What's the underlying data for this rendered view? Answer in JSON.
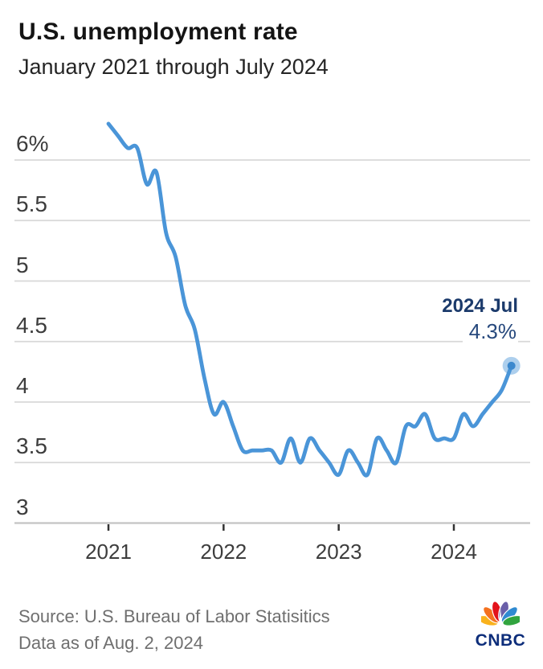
{
  "header": {
    "title": "U.S. unemployment rate",
    "subtitle": "January 2021 through July 2024"
  },
  "chart_data": {
    "type": "line",
    "title": "U.S. unemployment rate",
    "subtitle": "January 2021 through July 2024",
    "unit": "percent",
    "series_name": "U.S. unemployment rate",
    "months": [
      "2021-01",
      "2021-02",
      "2021-03",
      "2021-04",
      "2021-05",
      "2021-06",
      "2021-07",
      "2021-08",
      "2021-09",
      "2021-10",
      "2021-11",
      "2021-12",
      "2022-01",
      "2022-02",
      "2022-03",
      "2022-04",
      "2022-05",
      "2022-06",
      "2022-07",
      "2022-08",
      "2022-09",
      "2022-10",
      "2022-11",
      "2022-12",
      "2023-01",
      "2023-02",
      "2023-03",
      "2023-04",
      "2023-05",
      "2023-06",
      "2023-07",
      "2023-08",
      "2023-09",
      "2023-10",
      "2023-11",
      "2023-12",
      "2024-01",
      "2024-02",
      "2024-03",
      "2024-04",
      "2024-05",
      "2024-06",
      "2024-07"
    ],
    "values": [
      6.3,
      6.2,
      6.1,
      6.1,
      5.8,
      5.9,
      5.4,
      5.2,
      4.8,
      4.6,
      4.2,
      3.9,
      4.0,
      3.8,
      3.6,
      3.6,
      3.6,
      3.6,
      3.5,
      3.7,
      3.5,
      3.7,
      3.6,
      3.5,
      3.4,
      3.6,
      3.5,
      3.4,
      3.7,
      3.6,
      3.5,
      3.8,
      3.8,
      3.9,
      3.7,
      3.7,
      3.7,
      3.9,
      3.8,
      3.9,
      4.0,
      4.1,
      4.3
    ],
    "y_ticks": [
      {
        "label": "6%",
        "value": 6
      },
      {
        "label": "5.5",
        "value": 5.5
      },
      {
        "label": "5",
        "value": 5
      },
      {
        "label": "4.5",
        "value": 4.5
      },
      {
        "label": "4",
        "value": 4
      },
      {
        "label": "3.5",
        "value": 3.5
      },
      {
        "label": "3",
        "value": 3
      }
    ],
    "x_ticks": [
      {
        "label": "2021",
        "month_index": 0
      },
      {
        "label": "2022",
        "month_index": 12
      },
      {
        "label": "2023",
        "month_index": 24
      },
      {
        "label": "2024",
        "month_index": 36
      }
    ],
    "ylim": [
      3,
      6.5
    ],
    "grid": "horizontal",
    "legend": "none",
    "endpoint": {
      "label": "2024 Jul",
      "value_label": "4.3%",
      "value": 4.3
    },
    "colors": {
      "line": "#4a95d8",
      "marker_core": "#3c88cd",
      "annotation_navy": "#1b3a6b",
      "gridline": "#d8d8d8",
      "axis_line": "#c3c3c3",
      "tick": "#333333"
    }
  },
  "footer": {
    "source_line1": "Source: U.S. Bureau of Labor Statisitics",
    "source_line2": "Data as of Aug. 2, 2024",
    "logo_text": "CNBC"
  }
}
